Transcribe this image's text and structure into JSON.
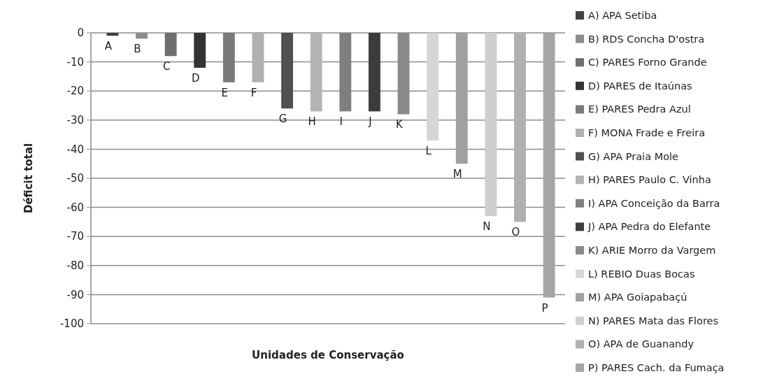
{
  "chart_data": {
    "type": "bar",
    "xlabel": "Unidades de Conservação",
    "ylabel": "Déficit total",
    "categories": [
      "A",
      "B",
      "C",
      "D",
      "E",
      "F",
      "G",
      "H",
      "I",
      "J",
      "K",
      "L",
      "M",
      "N",
      "O",
      "P"
    ],
    "series": [
      {
        "name": "A) APA Setiba",
        "color": "#404040",
        "values": [
          -1,
          null,
          null,
          null,
          null,
          null,
          null,
          null,
          null,
          null,
          null,
          null,
          null,
          null,
          null,
          null
        ]
      },
      {
        "name": "B) RDS Concha D'ostra",
        "color": "#8c8c8c",
        "values": [
          null,
          -2,
          null,
          null,
          null,
          null,
          null,
          null,
          null,
          null,
          null,
          null,
          null,
          null,
          null,
          null
        ]
      },
      {
        "name": "C) PARES Forno Grande",
        "color": "#6e6e6e",
        "values": [
          null,
          null,
          -8,
          null,
          null,
          null,
          null,
          null,
          null,
          null,
          null,
          null,
          null,
          null,
          null,
          null
        ]
      },
      {
        "name": "D) PARES de Itaúnas",
        "color": "#333333",
        "values": [
          null,
          null,
          null,
          -12,
          null,
          null,
          null,
          null,
          null,
          null,
          null,
          null,
          null,
          null,
          null,
          null
        ]
      },
      {
        "name": "E) PARES Pedra Azul",
        "color": "#7a7a7a",
        "values": [
          null,
          null,
          null,
          null,
          -17,
          null,
          null,
          null,
          null,
          null,
          null,
          null,
          null,
          null,
          null,
          null
        ]
      },
      {
        "name": "F) MONA Frade e Freira",
        "color": "#b0b0b0",
        "values": [
          null,
          null,
          null,
          null,
          null,
          -17,
          null,
          null,
          null,
          null,
          null,
          null,
          null,
          null,
          null,
          null
        ]
      },
      {
        "name": "G) APA Praia Mole",
        "color": "#505050",
        "values": [
          null,
          null,
          null,
          null,
          null,
          null,
          -26,
          null,
          null,
          null,
          null,
          null,
          null,
          null,
          null,
          null
        ]
      },
      {
        "name": "H) PARES Paulo C. Vinha",
        "color": "#b4b4b4",
        "values": [
          null,
          null,
          null,
          null,
          null,
          null,
          null,
          -27,
          null,
          null,
          null,
          null,
          null,
          null,
          null,
          null
        ]
      },
      {
        "name": "I) APA Conceição da Barra",
        "color": "#7f7f7f",
        "values": [
          null,
          null,
          null,
          null,
          null,
          null,
          null,
          null,
          -27,
          null,
          null,
          null,
          null,
          null,
          null,
          null
        ]
      },
      {
        "name": "J) APA Pedra do Elefante",
        "color": "#3c3c3c",
        "values": [
          null,
          null,
          null,
          null,
          null,
          null,
          null,
          null,
          null,
          -27,
          null,
          null,
          null,
          null,
          null,
          null
        ]
      },
      {
        "name": "K) ARIE Morro da Vargem",
        "color": "#8a8a8a",
        "values": [
          null,
          null,
          null,
          null,
          null,
          null,
          null,
          null,
          null,
          null,
          -28,
          null,
          null,
          null,
          null,
          null
        ]
      },
      {
        "name": "L) REBIO Duas Bocas",
        "color": "#d6d6d6",
        "values": [
          null,
          null,
          null,
          null,
          null,
          null,
          null,
          null,
          null,
          null,
          null,
          -37,
          null,
          null,
          null,
          null
        ]
      },
      {
        "name": "M) APA Goiapabaçú",
        "color": "#a0a0a0",
        "values": [
          null,
          null,
          null,
          null,
          null,
          null,
          null,
          null,
          null,
          null,
          null,
          null,
          -45,
          null,
          null,
          null
        ]
      },
      {
        "name": "N) PARES Mata das Flores",
        "color": "#cfcfcf",
        "values": [
          null,
          null,
          null,
          null,
          null,
          null,
          null,
          null,
          null,
          null,
          null,
          null,
          null,
          -63,
          null,
          null
        ]
      },
      {
        "name": "O) APA de Guanandy",
        "color": "#b0b0b0",
        "values": [
          null,
          null,
          null,
          null,
          null,
          null,
          null,
          null,
          null,
          null,
          null,
          null,
          null,
          null,
          -65,
          null
        ]
      },
      {
        "name": "P) PARES Cach. da Fumaça",
        "color": "#a5a5a5",
        "values": [
          null,
          null,
          null,
          null,
          null,
          null,
          null,
          null,
          null,
          null,
          null,
          null,
          null,
          null,
          null,
          -91
        ]
      }
    ],
    "ylim": [
      -100,
      0
    ],
    "yticks": [
      0,
      -10,
      -20,
      -30,
      -40,
      -50,
      -60,
      -70,
      -80,
      -90,
      -100
    ],
    "grid": "y",
    "legend": "right"
  }
}
